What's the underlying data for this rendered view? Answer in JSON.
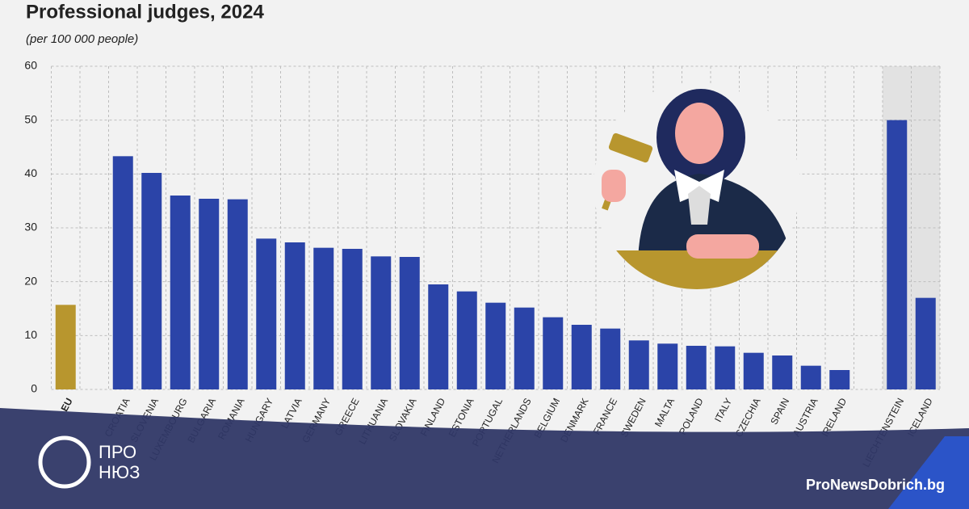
{
  "chart_data": {
    "type": "bar",
    "title": "Professional judges, 2024",
    "subtitle": "(per 100 000 people)",
    "categories": [
      "EU",
      null,
      "CROATIA",
      "SLOVENIA",
      "LUXEMBOURG",
      "BULGARIA",
      "ROMANIA",
      "HUNGARY",
      "LATVIA",
      "GERMANY",
      "GREECE",
      "LITHUANIA",
      "SLOVAKIA",
      "FINLAND",
      "ESTONIA",
      "PORTUGAL",
      "NETHERLANDS",
      "BELGIUM",
      "DENMARK",
      "FRANCE",
      "SWEDEN",
      "MALTA",
      "POLAND",
      "ITALY",
      "CZECHIA",
      "SPAIN",
      "AUSTRIA",
      "IRELAND",
      null,
      "LIECHTENSTEIN",
      "ICELAND"
    ],
    "values": [
      15.7,
      null,
      43.3,
      40.2,
      36.0,
      35.4,
      35.3,
      28.0,
      27.3,
      26.3,
      26.1,
      24.7,
      24.6,
      19.5,
      18.2,
      16.1,
      15.2,
      13.4,
      12.0,
      11.3,
      9.1,
      8.5,
      8.1,
      8.0,
      6.8,
      6.3,
      4.4,
      3.6,
      null,
      50.0,
      17.0
    ],
    "colors": [
      "#b8962e",
      null,
      "#2b44a8",
      "#2b44a8",
      "#2b44a8",
      "#2b44a8",
      "#2b44a8",
      "#2b44a8",
      "#2b44a8",
      "#2b44a8",
      "#2b44a8",
      "#2b44a8",
      "#2b44a8",
      "#2b44a8",
      "#2b44a8",
      "#2b44a8",
      "#2b44a8",
      "#2b44a8",
      "#2b44a8",
      "#2b44a8",
      "#2b44a8",
      "#2b44a8",
      "#2b44a8",
      "#2b44a8",
      "#2b44a8",
      "#2b44a8",
      "#2b44a8",
      "#2b44a8",
      null,
      "#2b44a8",
      "#2b44a8"
    ],
    "ylim": [
      0,
      60
    ],
    "yticks": [
      0,
      10,
      20,
      30,
      40,
      50,
      60
    ],
    "grid": true
  },
  "branding": {
    "logo_top": "ПРО",
    "logo_bottom": "НЮЗ",
    "site": "ProNewsDobrich.bg"
  }
}
